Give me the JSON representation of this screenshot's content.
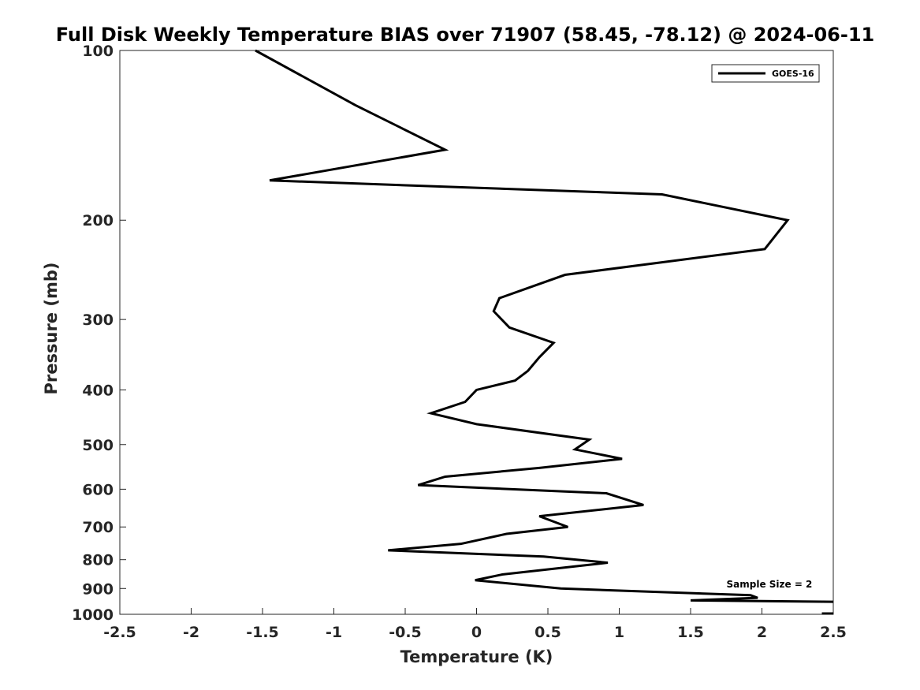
{
  "chart_data": {
    "type": "line",
    "title": "Full Disk Weekly Temperature BIAS over 71907 (58.45, -78.12) @ 2024-06-11",
    "xlabel": "Temperature (K)",
    "ylabel": "Pressure (mb)",
    "xlim": [
      -2.5,
      2.5
    ],
    "ylim": [
      100,
      1000
    ],
    "y_scale": "log",
    "y_reversed": true,
    "x_ticks": [
      "-2.5",
      "-2",
      "-1.5",
      "-1",
      "-0.5",
      "0",
      "0.5",
      "1",
      "1.5",
      "2",
      "2.5"
    ],
    "y_ticks": [
      "100",
      "200",
      "300",
      "400",
      "500",
      "600",
      "700",
      "800",
      "900",
      "1000"
    ],
    "grid": false,
    "legend_position": "top-right",
    "series": [
      {
        "name": "GOES-16",
        "color": "#000000",
        "points": [
          [
            -1.55,
            100
          ],
          [
            -0.85,
            125
          ],
          [
            -0.22,
            150
          ],
          [
            -1.45,
            170
          ],
          [
            1.3,
            180
          ],
          [
            2.18,
            200
          ],
          [
            2.02,
            225
          ],
          [
            0.62,
            250
          ],
          [
            0.16,
            275
          ],
          [
            0.12,
            290
          ],
          [
            0.23,
            310
          ],
          [
            0.54,
            330
          ],
          [
            0.44,
            350
          ],
          [
            0.36,
            370
          ],
          [
            0.27,
            385
          ],
          [
            0.0,
            400
          ],
          [
            -0.08,
            420
          ],
          [
            -0.32,
            440
          ],
          [
            0.0,
            460
          ],
          [
            0.79,
            490
          ],
          [
            0.69,
            510
          ],
          [
            1.02,
            530
          ],
          [
            0.44,
            550
          ],
          [
            -0.22,
            570
          ],
          [
            -0.41,
            590
          ],
          [
            0.91,
            610
          ],
          [
            1.17,
            640
          ],
          [
            0.44,
            670
          ],
          [
            0.64,
            700
          ],
          [
            0.21,
            720
          ],
          [
            -0.11,
            750
          ],
          [
            -0.62,
            770
          ],
          [
            0.47,
            790
          ],
          [
            0.92,
            810
          ],
          [
            0.18,
            850
          ],
          [
            -0.01,
            870
          ],
          [
            0.59,
            900
          ],
          [
            1.92,
            925
          ],
          [
            1.97,
            935
          ],
          [
            1.5,
            945
          ],
          [
            2.5,
            950
          ]
        ]
      }
    ],
    "extra_segments": [
      {
        "points": [
          [
            2.42,
            1000
          ],
          [
            2.5,
            1000
          ]
        ]
      }
    ],
    "annotations": [
      {
        "text": "Sample Size = 2",
        "x": 2.0,
        "y": 925
      }
    ]
  }
}
